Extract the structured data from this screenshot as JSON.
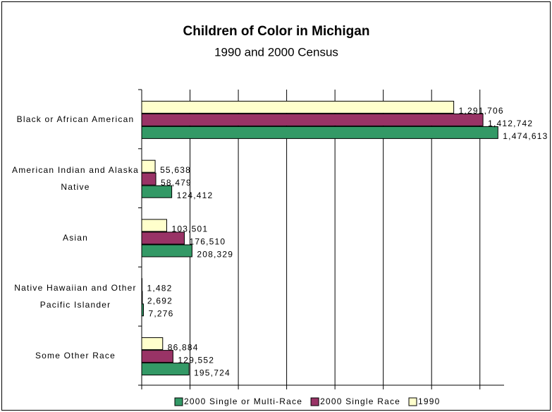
{
  "chart_data": {
    "type": "barh",
    "title": "Children of Color in Michigan",
    "subtitle": "1990 and 2000 Census",
    "categories": [
      "Black or African American",
      "American Indian and Alaska Native",
      "Asian",
      "Native Hawaiian and Other Pacific Islander",
      "Some Other Race"
    ],
    "series": [
      {
        "name": "2000 Single or Multi-Race",
        "color": "#339966",
        "values": [
          1474613,
          124412,
          208329,
          7276,
          195724
        ],
        "value_labels": [
          "1,474,613",
          "124,412",
          "208,329",
          "7,276",
          "195,724"
        ]
      },
      {
        "name": "2000 Single Race",
        "color": "#993366",
        "values": [
          1412742,
          58479,
          176510,
          2692,
          129552
        ],
        "value_labels": [
          "1,412,742",
          "58,479",
          "176,510",
          "2,692",
          "129,552"
        ]
      },
      {
        "name": "1990",
        "color": "#ffffcc",
        "values": [
          1291706,
          55638,
          103501,
          1482,
          86884
        ],
        "value_labels": [
          "1,291,706",
          "55,638",
          "103,501",
          "1,482",
          "86,884"
        ]
      }
    ],
    "xlim": [
      0,
      1500000
    ],
    "xticks": [
      0,
      200000,
      400000,
      600000,
      800000,
      1000000,
      1200000,
      1400000
    ],
    "grid": true,
    "legend": "bottom"
  }
}
